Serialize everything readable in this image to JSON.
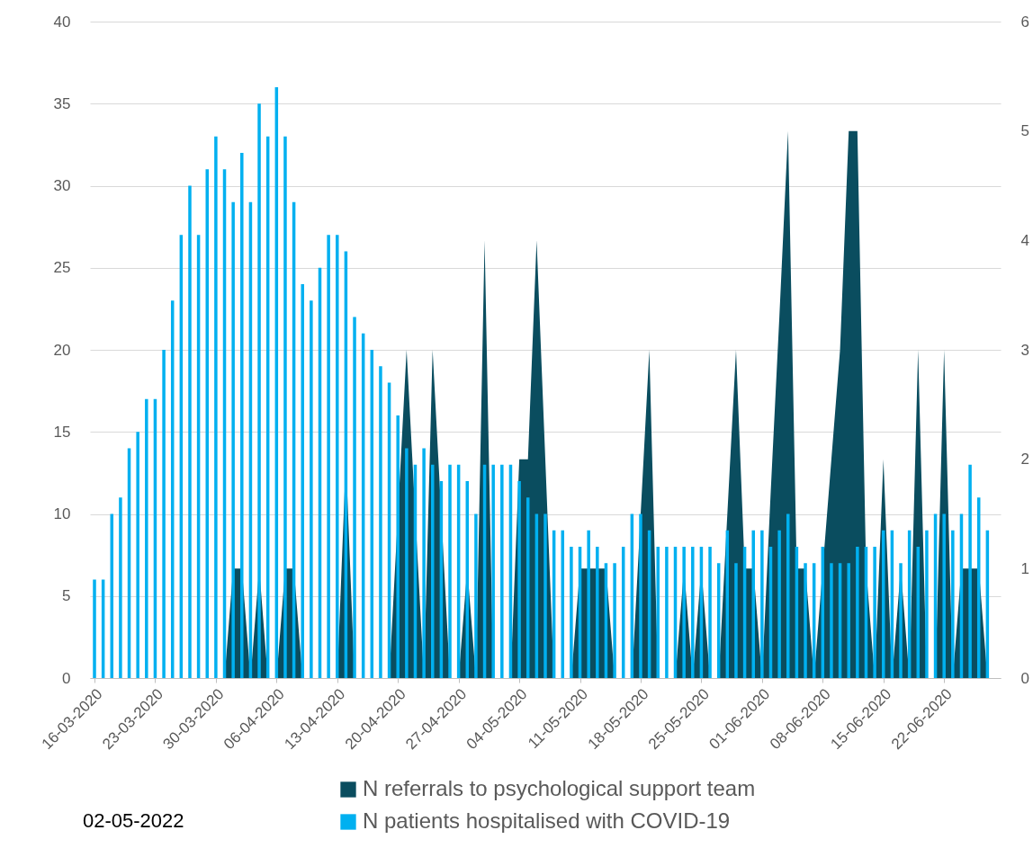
{
  "chart_data": {
    "type": "bar",
    "x": [
      "2020-03-16",
      "2020-03-17",
      "2020-03-18",
      "2020-03-19",
      "2020-03-20",
      "2020-03-21",
      "2020-03-22",
      "2020-03-23",
      "2020-03-24",
      "2020-03-25",
      "2020-03-26",
      "2020-03-27",
      "2020-03-28",
      "2020-03-29",
      "2020-03-30",
      "2020-03-31",
      "2020-04-01",
      "2020-04-02",
      "2020-04-03",
      "2020-04-04",
      "2020-04-05",
      "2020-04-06",
      "2020-04-07",
      "2020-04-08",
      "2020-04-09",
      "2020-04-10",
      "2020-04-11",
      "2020-04-12",
      "2020-04-13",
      "2020-04-14",
      "2020-04-15",
      "2020-04-16",
      "2020-04-17",
      "2020-04-18",
      "2020-04-19",
      "2020-04-20",
      "2020-04-21",
      "2020-04-22",
      "2020-04-23",
      "2020-04-24",
      "2020-04-25",
      "2020-04-26",
      "2020-04-27",
      "2020-04-28",
      "2020-04-29",
      "2020-04-30",
      "2020-05-01",
      "2020-05-02",
      "2020-05-03",
      "2020-05-04",
      "2020-05-05",
      "2020-05-06",
      "2020-05-07",
      "2020-05-08",
      "2020-05-09",
      "2020-05-10",
      "2020-05-11",
      "2020-05-12",
      "2020-05-13",
      "2020-05-14",
      "2020-05-15",
      "2020-05-16",
      "2020-05-17",
      "2020-05-18",
      "2020-05-19",
      "2020-05-20",
      "2020-05-21",
      "2020-05-22",
      "2020-05-23",
      "2020-05-24",
      "2020-05-25",
      "2020-05-26",
      "2020-05-27",
      "2020-05-28",
      "2020-05-29",
      "2020-05-30",
      "2020-05-31",
      "2020-06-01",
      "2020-06-02",
      "2020-06-03",
      "2020-06-04",
      "2020-06-05",
      "2020-06-06",
      "2020-06-07",
      "2020-06-08",
      "2020-06-09",
      "2020-06-10",
      "2020-06-11",
      "2020-06-12",
      "2020-06-13",
      "2020-06-14",
      "2020-06-15",
      "2020-06-16",
      "2020-06-17",
      "2020-06-18",
      "2020-06-19",
      "2020-06-20",
      "2020-06-21",
      "2020-06-22",
      "2020-06-23",
      "2020-06-24",
      "2020-06-25",
      "2020-06-26",
      "2020-06-27"
    ],
    "series": [
      {
        "name": "N referrals to psychological support team",
        "type": "area",
        "axis": "y2",
        "color": "#0a4d5f",
        "values": [
          0,
          0,
          0,
          0,
          0,
          0,
          0,
          0,
          0,
          0,
          0,
          0,
          0,
          0,
          0,
          0,
          1,
          1,
          0,
          1,
          0,
          0,
          1,
          1,
          0,
          0,
          0,
          0,
          0,
          2,
          0,
          0,
          0,
          0,
          0,
          1.5,
          3,
          1.5,
          0,
          3,
          1.5,
          0,
          0,
          1,
          0,
          4,
          0,
          0,
          0,
          2,
          2,
          4,
          2,
          0,
          0,
          0,
          1,
          1,
          1,
          1,
          0,
          0,
          0,
          1.5,
          3,
          0,
          0,
          0,
          1,
          0,
          1,
          0,
          0,
          1.5,
          3,
          1,
          1,
          0,
          1.7,
          3.3,
          5,
          1,
          1,
          0,
          1,
          2,
          3,
          5,
          5,
          1,
          0,
          2,
          0,
          1,
          0,
          3,
          0,
          0,
          3,
          0,
          1,
          1,
          1,
          0
        ]
      },
      {
        "name": "N patients hospitalised with COVID-19",
        "color": "#00b0f0",
        "values": [
          6,
          6,
          10,
          11,
          14,
          15,
          17,
          17,
          20,
          23,
          27,
          30,
          27,
          31,
          33,
          31,
          29,
          32,
          29,
          35,
          33,
          36,
          33,
          29,
          24,
          23,
          25,
          27,
          27,
          26,
          22,
          21,
          20,
          19,
          18,
          16,
          14,
          13,
          14,
          13,
          12,
          13,
          13,
          12,
          10,
          13,
          13,
          13,
          13,
          12,
          11,
          10,
          10,
          9,
          9,
          8,
          8,
          9,
          8,
          7,
          7,
          8,
          10,
          10,
          9,
          8,
          8,
          8,
          8,
          8,
          8,
          8,
          7,
          9,
          7,
          8,
          9,
          9,
          8,
          9,
          10,
          8,
          7,
          7,
          8,
          7,
          7,
          7,
          8,
          8,
          8,
          9,
          9,
          7,
          9,
          8,
          9,
          10,
          10,
          9,
          10,
          13,
          11,
          9
        ]
      }
    ],
    "xlim": [
      "2020-03-16",
      "2020-06-28"
    ],
    "xticks": [
      {
        "value": "2020-03-16",
        "label": "16-03-2020"
      },
      {
        "value": "2020-03-23",
        "label": "23-03-2020"
      },
      {
        "value": "2020-03-30",
        "label": "30-03-2020"
      },
      {
        "value": "2020-04-06",
        "label": "06-04-2020"
      },
      {
        "value": "2020-04-13",
        "label": "13-04-2020"
      },
      {
        "value": "2020-04-20",
        "label": "20-04-2020"
      },
      {
        "value": "2020-04-27",
        "label": "27-04-2020"
      },
      {
        "value": "2020-05-04",
        "label": "04-05-2020"
      },
      {
        "value": "2020-05-11",
        "label": "11-05-2020"
      },
      {
        "value": "2020-05-18",
        "label": "18-05-2020"
      },
      {
        "value": "2020-05-25",
        "label": "25-05-2020"
      },
      {
        "value": "2020-06-01",
        "label": "01-06-2020"
      },
      {
        "value": "2020-06-08",
        "label": "08-06-2020"
      },
      {
        "value": "2020-06-15",
        "label": "15-06-2020"
      },
      {
        "value": "2020-06-22",
        "label": "22-06-2020"
      }
    ],
    "ylim": [
      0,
      40
    ],
    "yticks": [
      0,
      5,
      10,
      15,
      20,
      25,
      30,
      35,
      40
    ],
    "y2lim": [
      0,
      6
    ],
    "y2ticks": [
      0,
      1,
      2,
      3,
      4,
      5,
      6
    ],
    "grid": "y",
    "legend": "bottom",
    "annotations": [
      "02-05-2022"
    ]
  }
}
